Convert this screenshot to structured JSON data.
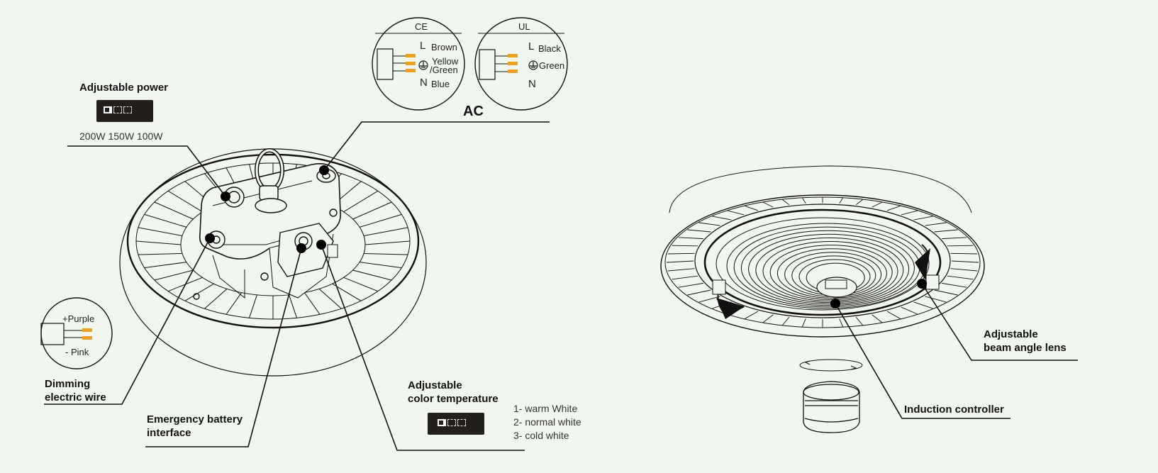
{
  "labels": {
    "adjustable_power": "Adjustable power",
    "power_values": "200W 150W 100W",
    "ac": "AC",
    "dimming_line1": "Dimming",
    "dimming_line2": "electric wire",
    "emergency_line1": "Emergency battery",
    "emergency_line2": "interface",
    "color_temp_line1": "Adjustable",
    "color_temp_line2": "color temperature",
    "beam_line1": "Adjustable",
    "beam_line2": "beam angle lens",
    "induction": "Induction controller"
  },
  "color_options": [
    "1- warm White",
    "2- normal white",
    "3- cold white"
  ],
  "ce_circle": {
    "title": "CE",
    "wires": [
      {
        "letter": "L",
        "name": "Brown"
      },
      {
        "letter": "ground",
        "name": "Yellow",
        "name2": "/Green"
      },
      {
        "letter": "N",
        "name": "Blue"
      }
    ]
  },
  "ul_circle": {
    "title": "UL",
    "wires": [
      {
        "letter": "L",
        "name": "Black"
      },
      {
        "letter": "ground",
        "name": "Green"
      },
      {
        "letter": "N",
        "name": ""
      }
    ]
  },
  "dimming_circle": {
    "plus_label": "+Purple",
    "minus_label": "- Pink"
  },
  "colors": {
    "background": "#f1f6ee",
    "wire_orange": "#f0a020",
    "line": "#111111",
    "switch_bg": "#231f1c"
  }
}
